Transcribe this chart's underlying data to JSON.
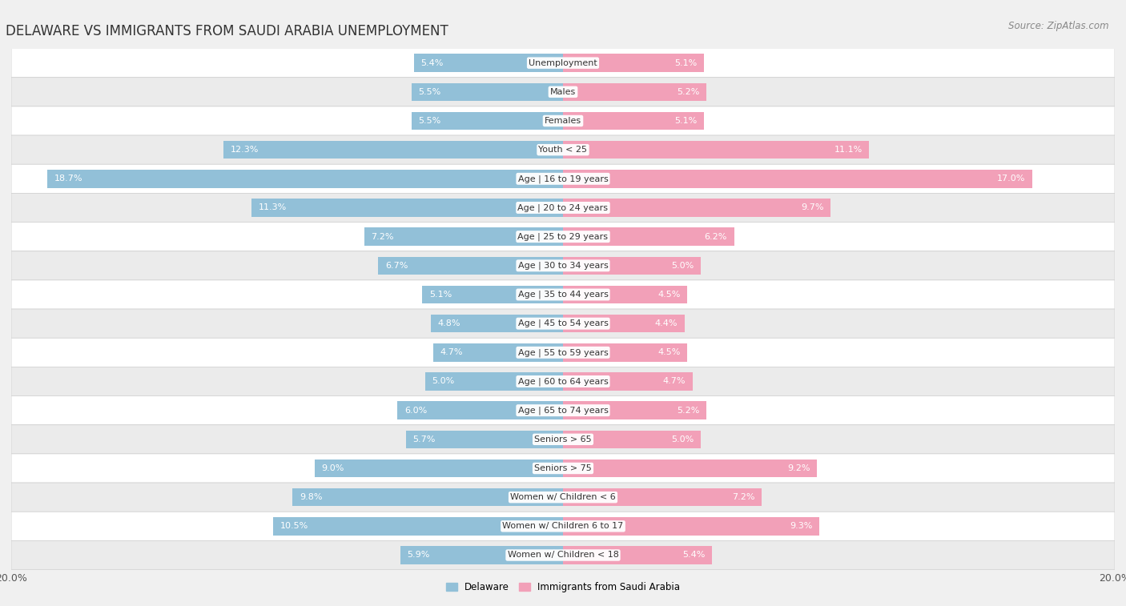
{
  "title": "DELAWARE VS IMMIGRANTS FROM SAUDI ARABIA UNEMPLOYMENT",
  "source": "Source: ZipAtlas.com",
  "categories": [
    "Unemployment",
    "Males",
    "Females",
    "Youth < 25",
    "Age | 16 to 19 years",
    "Age | 20 to 24 years",
    "Age | 25 to 29 years",
    "Age | 30 to 34 years",
    "Age | 35 to 44 years",
    "Age | 45 to 54 years",
    "Age | 55 to 59 years",
    "Age | 60 to 64 years",
    "Age | 65 to 74 years",
    "Seniors > 65",
    "Seniors > 75",
    "Women w/ Children < 6",
    "Women w/ Children 6 to 17",
    "Women w/ Children < 18"
  ],
  "delaware": [
    5.4,
    5.5,
    5.5,
    12.3,
    18.7,
    11.3,
    7.2,
    6.7,
    5.1,
    4.8,
    4.7,
    5.0,
    6.0,
    5.7,
    9.0,
    9.8,
    10.5,
    5.9
  ],
  "immigrants": [
    5.1,
    5.2,
    5.1,
    11.1,
    17.0,
    9.7,
    6.2,
    5.0,
    4.5,
    4.4,
    4.5,
    4.7,
    5.2,
    5.0,
    9.2,
    7.2,
    9.3,
    5.4
  ],
  "delaware_color": "#92c0d8",
  "immigrants_color": "#f2a0b8",
  "background_color": "#f0f0f0",
  "row_color_odd": "#ffffff",
  "row_color_even": "#ebebeb",
  "xlim": 20.0,
  "bar_height": 0.62,
  "legend_label_delaware": "Delaware",
  "legend_label_immigrants": "Immigrants from Saudi Arabia",
  "title_fontsize": 12,
  "source_fontsize": 8.5,
  "label_fontsize": 8,
  "category_fontsize": 8,
  "axis_fontsize": 9
}
